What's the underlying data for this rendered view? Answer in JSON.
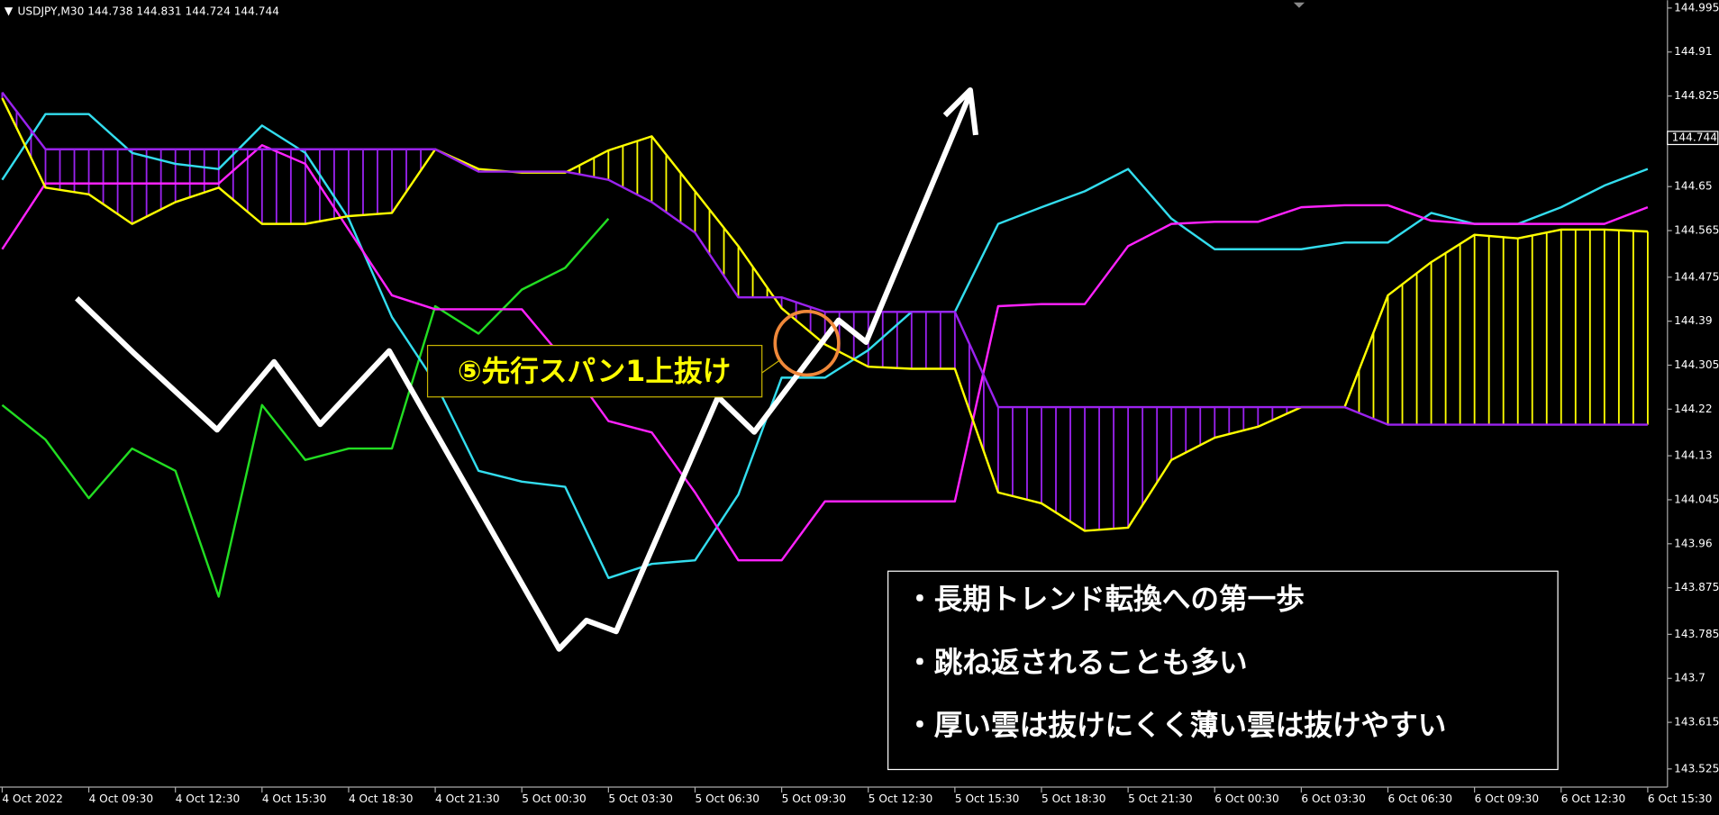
{
  "chart_data": {
    "type": "line",
    "symbol": "USDJPY,M30",
    "quote": [
      144.738,
      144.831,
      144.724,
      144.744
    ],
    "current_price": 144.744,
    "categories": [
      "4 Oct 2022",
      null,
      "4 Oct 09:30",
      null,
      "4 Oct 12:30",
      null,
      "4 Oct 15:30",
      null,
      "4 Oct 18:30",
      null,
      "4 Oct 21:30",
      null,
      "5 Oct 00:30",
      null,
      "5 Oct 03:30",
      null,
      "5 Oct 06:30",
      null,
      "5 Oct 09:30",
      null,
      "5 Oct 12:30",
      null,
      "5 Oct 15:30",
      null,
      "5 Oct 18:30",
      null,
      "5 Oct 21:30",
      null,
      "6 Oct 00:30",
      null,
      "6 Oct 03:30",
      null,
      "6 Oct 06:30",
      null,
      "6 Oct 09:30",
      null,
      "6 Oct 12:30",
      null,
      "6 Oct 15:30"
    ],
    "series": [
      {
        "color": "#22dd22",
        "values": [
          144.228,
          144.161,
          144.048,
          144.144,
          144.101,
          143.858,
          144.228,
          144.122,
          144.144,
          144.144,
          144.419,
          144.366,
          144.451,
          144.493,
          144.588,
          null,
          null,
          null,
          null,
          null,
          null,
          null,
          null,
          null,
          null,
          null,
          null,
          null,
          null,
          null,
          null,
          null,
          null,
          null,
          null,
          null,
          null,
          null,
          null
        ]
      },
      {
        "color": "#33ddee",
        "values": [
          144.663,
          144.79,
          144.79,
          144.715,
          144.694,
          144.684,
          144.768,
          144.715,
          144.588,
          144.398,
          144.271,
          144.101,
          144.08,
          144.07,
          143.894,
          143.921,
          143.928,
          144.055,
          144.281,
          144.281,
          144.334,
          144.408,
          144.408,
          144.578,
          144.61,
          144.641,
          144.684,
          144.588,
          144.529,
          144.529,
          144.529,
          144.542,
          144.542,
          144.599,
          144.578,
          144.578,
          144.61,
          144.652,
          144.684
        ]
      },
      {
        "color": "#ff22ff",
        "values": [
          144.529,
          144.656,
          144.656,
          144.656,
          144.656,
          144.656,
          144.73,
          144.694,
          144.567,
          144.44,
          144.413,
          144.413,
          144.413,
          144.313,
          144.197,
          144.175,
          144.059,
          143.928,
          143.928,
          144.042,
          144.042,
          144.042,
          144.042,
          144.419,
          144.423,
          144.423,
          144.535,
          144.578,
          144.582,
          144.582,
          144.61,
          144.614,
          144.614,
          144.584,
          144.578,
          144.578,
          144.578,
          144.578,
          144.61
        ]
      },
      {
        "color": "#ffff00",
        "values": [
          144.821,
          144.648,
          144.635,
          144.578,
          144.62,
          144.648,
          144.578,
          144.578,
          144.593,
          144.599,
          144.722,
          144.684,
          144.677,
          144.677,
          144.72,
          144.747,
          144.641,
          144.535,
          144.415,
          144.345,
          144.302,
          144.298,
          144.298,
          144.059,
          144.038,
          143.985,
          143.991,
          144.122,
          144.165,
          144.186,
          144.224,
          144.224,
          144.44,
          144.504,
          144.557,
          144.55,
          144.567,
          144.567,
          144.563
        ]
      },
      {
        "color": "#9a22ee",
        "values": [
          144.832,
          144.722,
          144.722,
          144.722,
          144.722,
          144.722,
          144.722,
          144.722,
          144.722,
          144.722,
          144.722,
          144.679,
          144.679,
          144.679,
          144.663,
          144.62,
          144.561,
          144.436,
          144.436,
          144.408,
          144.408,
          144.408,
          144.408,
          144.224,
          144.224,
          144.224,
          144.224,
          144.224,
          144.224,
          144.224,
          144.224,
          144.224,
          144.19,
          144.19,
          144.19,
          144.19,
          144.19,
          144.19,
          144.19
        ]
      }
    ],
    "ylim": [
      143.49,
      145.01
    ],
    "yticks": [
      144.995,
      144.91,
      144.825,
      144.65,
      144.565,
      144.475,
      144.39,
      144.305,
      144.22,
      144.13,
      144.045,
      143.96,
      143.875,
      143.785,
      143.7,
      143.615,
      143.525
    ],
    "annotation": "⑤先行スパン1上抜け",
    "notes": [
      "・長期トレンド転換への第一歩",
      "・跳ね返されることも多い",
      "・厚い雲は抜けにくく薄い雲は抜けやすい"
    ]
  }
}
